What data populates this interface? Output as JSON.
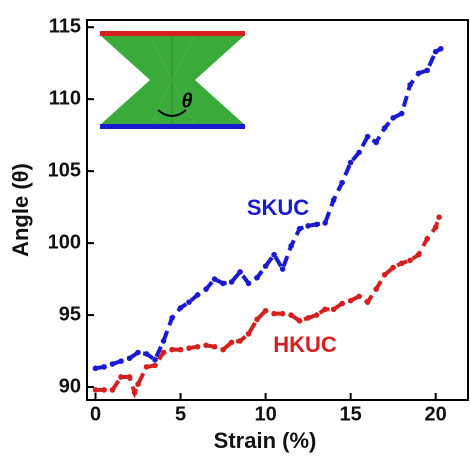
{
  "chart_data": {
    "type": "line",
    "xlabel": "Strain (%)",
    "ylabel": "Angle (θ)",
    "inset_label": "θ",
    "xlim": [
      -0.5,
      21.9
    ],
    "ylim": [
      89.1,
      115.5
    ],
    "xticks": [
      0,
      5,
      10,
      15,
      20
    ],
    "yticks": [
      90,
      95,
      100,
      105,
      110,
      115
    ],
    "series": [
      {
        "name": "SKUC",
        "color": "#1a1ad0",
        "x": [
          0,
          0.5,
          1,
          1.5,
          2,
          2.5,
          3,
          3.5,
          4,
          4.5,
          5,
          5.5,
          6,
          6.5,
          7,
          7.5,
          8,
          8.5,
          9,
          9.5,
          10,
          10.5,
          11,
          11.5,
          12,
          12.5,
          13,
          13.5,
          14,
          14.5,
          15,
          15.5,
          16,
          16.5,
          17,
          17.5,
          18,
          18.5,
          19,
          19.5,
          20,
          20.3
        ],
        "values": [
          91.3,
          91.4,
          91.6,
          91.8,
          92.0,
          92.4,
          92.3,
          91.9,
          93.2,
          94.8,
          95.5,
          95.9,
          96.4,
          96.8,
          97.5,
          97.2,
          97.3,
          98.0,
          97.2,
          97.6,
          98.4,
          99.2,
          98.2,
          99.8,
          101.0,
          101.2,
          101.3,
          101.4,
          103.0,
          104.2,
          105.6,
          106.3,
          107.4,
          107.0,
          108.0,
          108.7,
          109.0,
          111.0,
          111.8,
          112.0,
          113.3,
          113.5
        ]
      },
      {
        "name": "HKUC",
        "color": "#d42020",
        "x": [
          0,
          0.5,
          1,
          1.5,
          2,
          2.3,
          2.5,
          3,
          3.5,
          4,
          4.5,
          5,
          5.5,
          6,
          6.5,
          7,
          7.5,
          8,
          8.5,
          9,
          9.5,
          10,
          10.5,
          11,
          11.5,
          12,
          12.5,
          13,
          13.5,
          14,
          14.5,
          15,
          15.5,
          16,
          16.5,
          17,
          17.5,
          18,
          18.5,
          19,
          19.5,
          20,
          20.2
        ],
        "values": [
          89.8,
          89.8,
          89.8,
          90.7,
          90.7,
          89.6,
          90.2,
          91.4,
          91.5,
          92.4,
          92.6,
          92.6,
          92.7,
          92.8,
          92.9,
          92.8,
          92.6,
          93.1,
          93.2,
          93.7,
          94.7,
          95.3,
          95.1,
          95.1,
          95.0,
          94.6,
          94.8,
          95.0,
          95.4,
          95.4,
          95.8,
          96.0,
          96.3,
          95.9,
          96.8,
          97.8,
          98.3,
          98.6,
          98.8,
          99.2,
          100.3,
          101.1,
          101.8
        ]
      }
    ]
  }
}
